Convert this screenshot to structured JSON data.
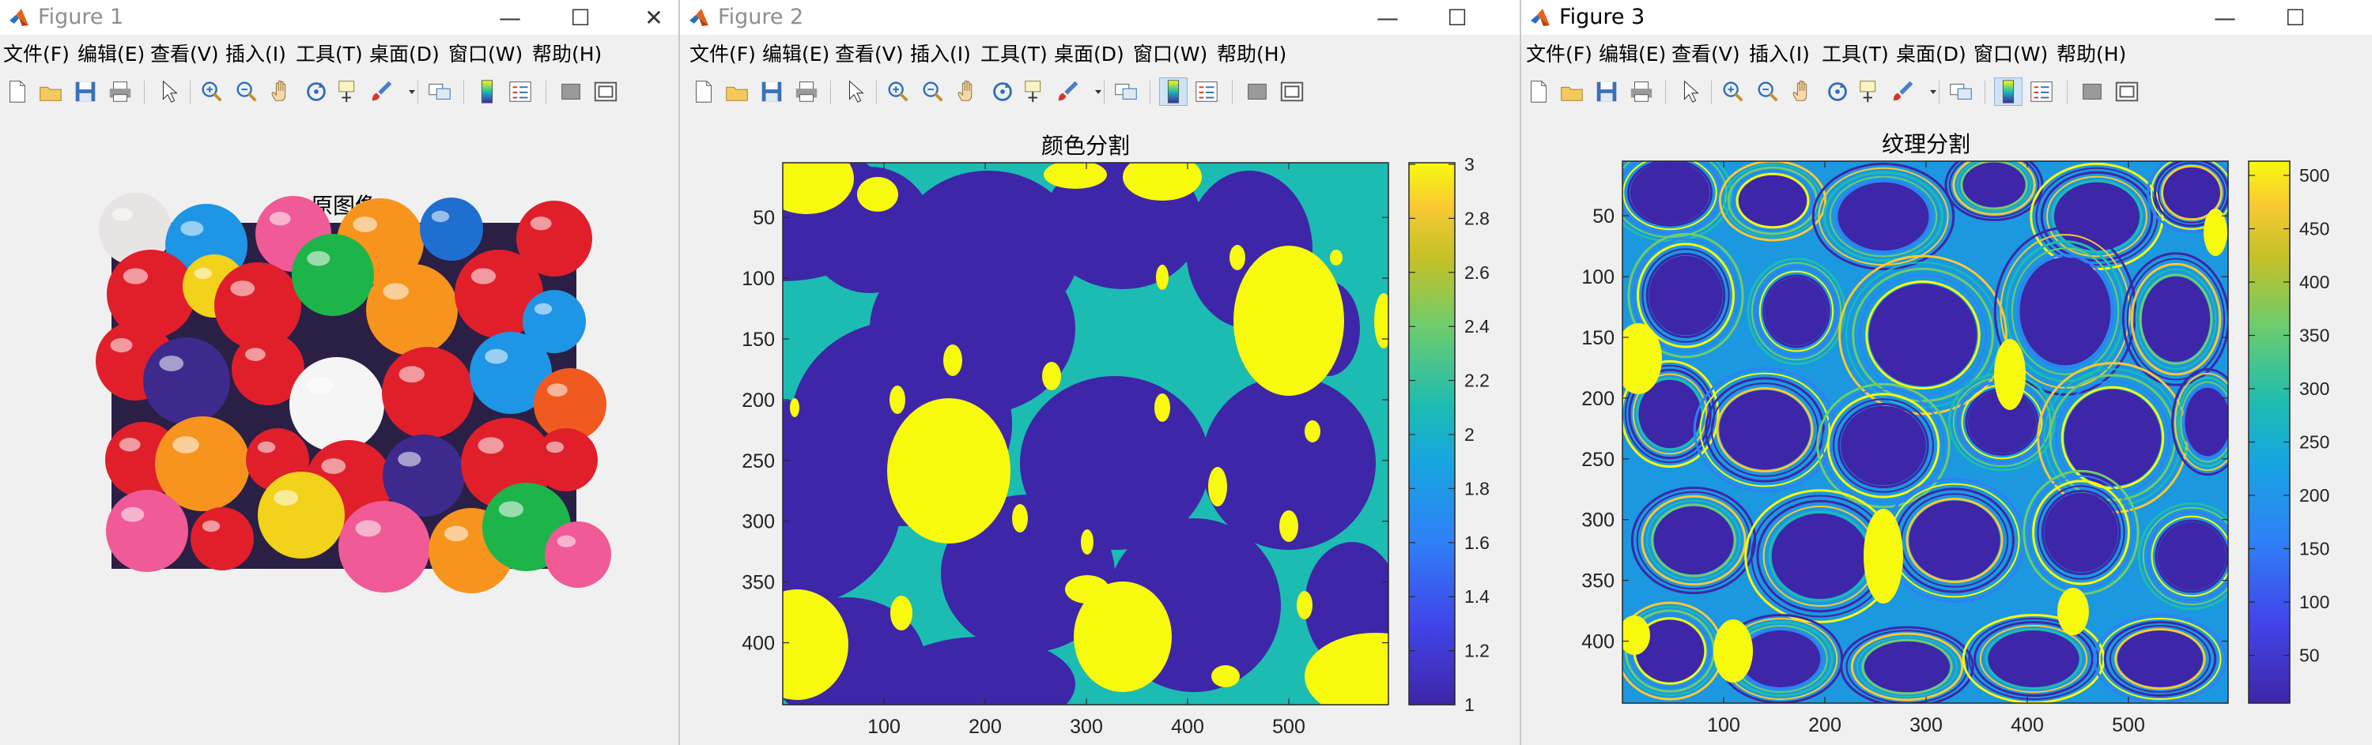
{
  "colors": {
    "parula_dark": "#3e26a8",
    "parula_mid": "#1cbcb2",
    "parula_yellow": "#f8fa0d",
    "window_bg": "#f0f0f0"
  },
  "menu_items": [
    "文件(F)",
    "编辑(E)",
    "查看(V)",
    "插入(I)",
    "工具(T)",
    "桌面(D)",
    "窗口(W)",
    "帮助(H)"
  ],
  "toolbar_icons": [
    "new-figure-icon",
    "open-file-icon",
    "save-icon",
    "print-icon",
    "pointer-icon",
    "zoom-in-icon",
    "zoom-out-icon",
    "pan-hand-icon",
    "rotate-3d-icon",
    "data-cursor-icon",
    "brush-icon",
    "link-plot-icon",
    "colorbar-icon",
    "legend-icon",
    "hide-plot-tools-icon",
    "show-plot-tools-icon"
  ],
  "figure1": {
    "window_title": "Figure 1",
    "axes_title": "原图像",
    "image_description": "gumballs"
  },
  "figure2": {
    "window_title": "Figure 2",
    "axes_title": "颜色分割",
    "y_tick_labels": [
      "50",
      "100",
      "150",
      "200",
      "250",
      "300",
      "350",
      "400"
    ],
    "x_tick_labels": [
      "100",
      "200",
      "300",
      "400",
      "500"
    ],
    "colorbar_labels": [
      "3",
      "2.8",
      "2.6",
      "2.4",
      "2.2",
      "2",
      "1.8",
      "1.6",
      "1.4",
      "1.2",
      "1"
    ]
  },
  "figure3": {
    "window_title": "Figure 3",
    "axes_title": "纹理分割",
    "y_tick_labels": [
      "50",
      "100",
      "150",
      "200",
      "250",
      "300",
      "350",
      "400"
    ],
    "x_tick_labels": [
      "100",
      "200",
      "300",
      "400",
      "500"
    ],
    "colorbar_labels": [
      "500",
      "450",
      "400",
      "350",
      "300",
      "250",
      "200",
      "150",
      "100",
      "50"
    ]
  }
}
